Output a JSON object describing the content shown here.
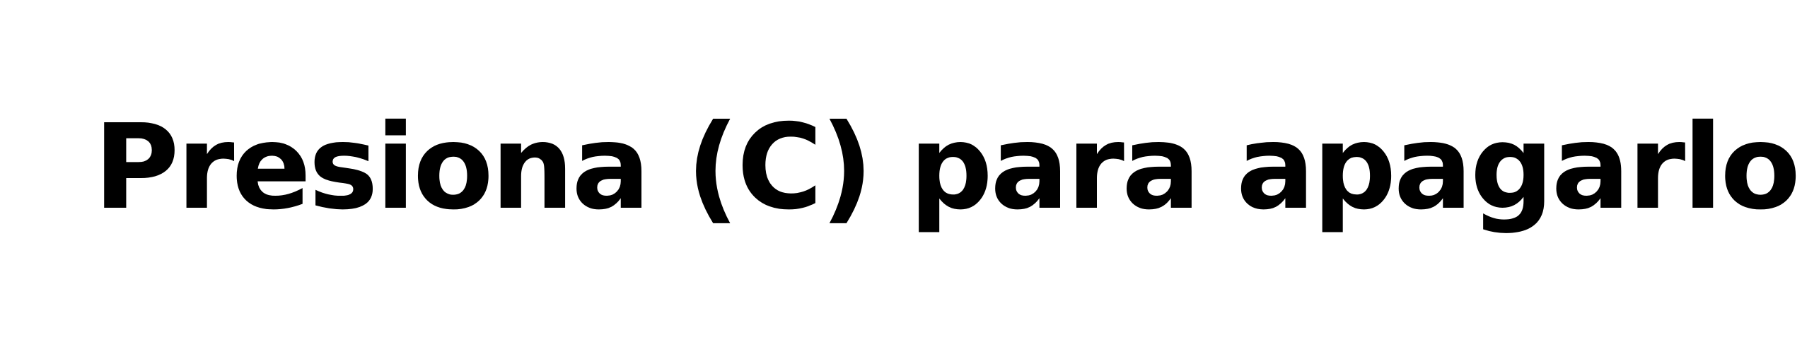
{
  "prompt": {
    "text": "Presiona (C) para apagarlo"
  },
  "colors": {
    "background": "#ffffff",
    "text": "#000000"
  }
}
